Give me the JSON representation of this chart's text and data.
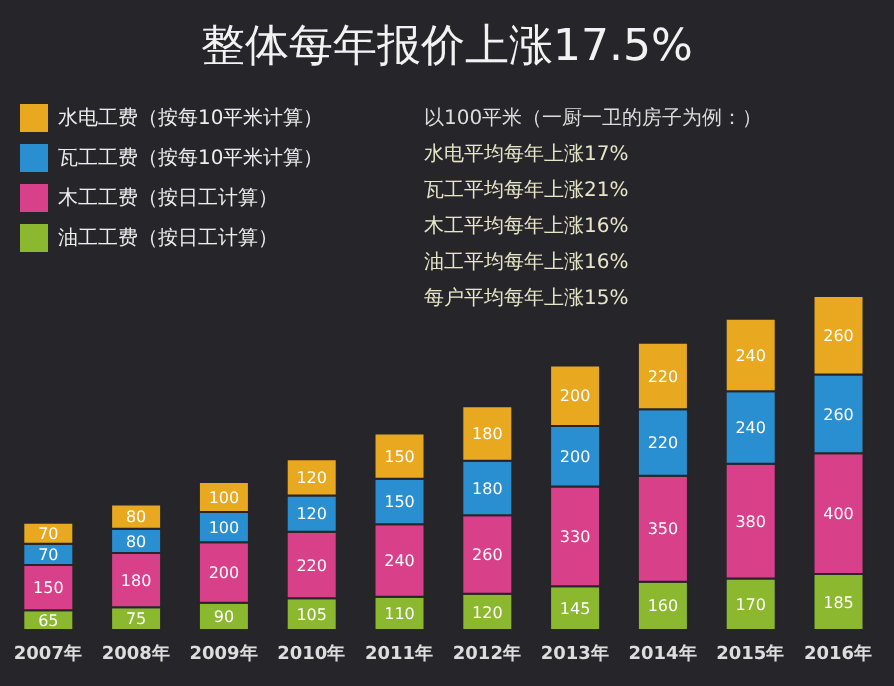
{
  "chart_data": {
    "type": "bar",
    "stacked": true,
    "title": "整体每年报价上涨17.5%",
    "categories": [
      "2007年",
      "2008年",
      "2009年",
      "2010年",
      "2011年",
      "2012年",
      "2013年",
      "2014年",
      "2015年",
      "2016年"
    ],
    "series": [
      {
        "name": "油工工费（按日工计算）",
        "color": "#8cb830",
        "values": [
          65,
          75,
          90,
          105,
          110,
          120,
          145,
          160,
          170,
          185
        ]
      },
      {
        "name": "木工工费（按日工计算）",
        "color": "#d8408a",
        "values": [
          150,
          180,
          200,
          220,
          240,
          260,
          330,
          350,
          380,
          400
        ]
      },
      {
        "name": "瓦工工费（按每10平米计算）",
        "color": "#2a8fd0",
        "values": [
          70,
          80,
          100,
          120,
          150,
          180,
          200,
          220,
          240,
          260
        ]
      },
      {
        "name": "水电工费（按每10平米计算）",
        "color": "#e8a820",
        "values": [
          70,
          80,
          100,
          120,
          150,
          180,
          200,
          220,
          240,
          260
        ]
      }
    ],
    "annotations": [
      "以100平米（一厨一卫的房子为例：）",
      "水电平均每年上涨17%",
      "瓦工平均每年上涨21%",
      "木工平均每年上涨16%",
      "油工平均每年上涨16%",
      "每户平均每年上涨15%"
    ],
    "data_labels": true,
    "legend": "top left",
    "grid": false
  }
}
